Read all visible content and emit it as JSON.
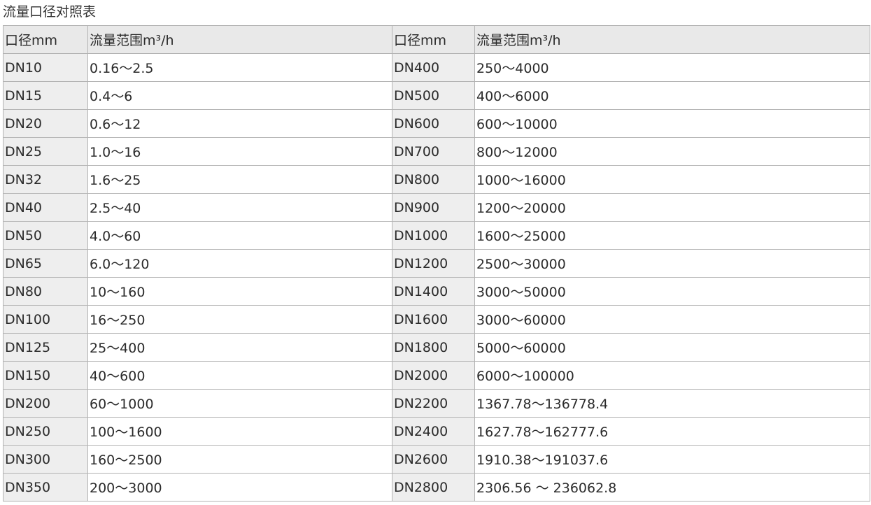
{
  "title": "流量口径对照表",
  "headers": [
    "口径mm",
    "流量范围m³/h",
    "口径mm",
    "流量范围m³/h"
  ],
  "rows": [
    [
      "DN10",
      "0.16～2.5",
      "DN400",
      "250～4000"
    ],
    [
      "DN15",
      "0.4～6",
      "DN500",
      "400～6000"
    ],
    [
      "DN20",
      "0.6～12",
      "DN600",
      "600～10000"
    ],
    [
      "DN25",
      "1.0～16",
      "DN700",
      "800～12000"
    ],
    [
      "DN32",
      "1.6～25",
      "DN800",
      "1000～16000"
    ],
    [
      "DN40",
      "2.5～40",
      "DN900",
      "1200～20000"
    ],
    [
      "DN50",
      "4.0～60",
      "DN1000",
      "1600～25000"
    ],
    [
      "DN65",
      "6.0～120",
      "DN1200",
      "2500～30000"
    ],
    [
      "DN80",
      "10～160",
      "DN1400",
      "3000～50000"
    ],
    [
      "DN100",
      "16～250",
      "DN1600",
      "3000～60000"
    ],
    [
      "DN125",
      "25～400",
      "DN1800",
      "5000～60000"
    ],
    [
      "DN150",
      "40～600",
      "DN2000",
      "6000～100000"
    ],
    [
      "DN200",
      "60～1000",
      "DN2200",
      "1367.78～136778.4"
    ],
    [
      "DN250",
      "100～1600",
      "DN2400",
      "1627.78～162777.6"
    ],
    [
      "DN300",
      "160～2500",
      "DN2600",
      "1910.38～191037.6"
    ],
    [
      "DN350",
      "200～3000",
      "DN2800",
      "2306.56 ～ 236062.8"
    ]
  ]
}
